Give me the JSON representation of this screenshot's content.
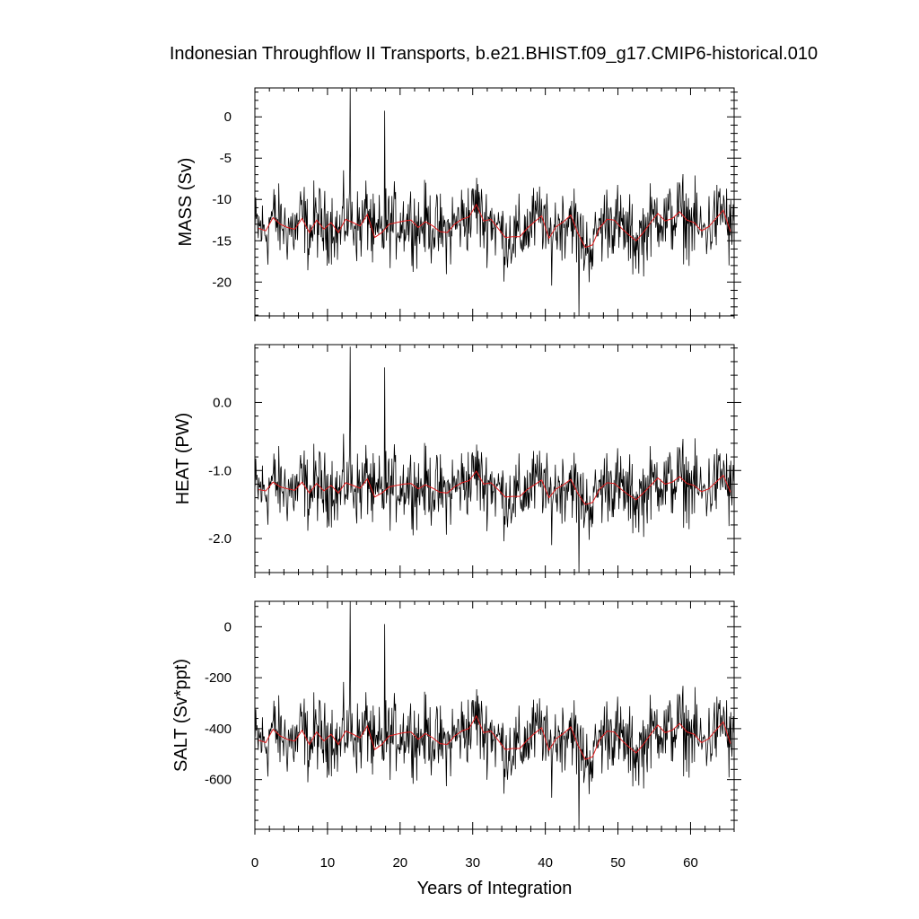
{
  "chart_data": {
    "type": "line",
    "title": "Indonesian Throughflow II Transports, b.e21.BHIST.f09_g17.CMIP6-historical.010",
    "xlabel": "Years of Integration",
    "xlim": [
      0,
      66
    ],
    "x_ticks": [
      0,
      10,
      20,
      30,
      40,
      50,
      60
    ],
    "x_tick_labels": [
      "0",
      "10",
      "20",
      "30",
      "40",
      "50",
      "60"
    ],
    "series_colors": {
      "monthly": "#000000",
      "annual_mean": "#e31a1c"
    },
    "panels": [
      {
        "ylabel": "MASS (Sv)",
        "ylim": [
          -24.1,
          3.5
        ],
        "y_ticks": [
          0,
          -5,
          -10,
          -15,
          -20
        ],
        "y_tick_labels": [
          "0",
          "-5",
          "-10",
          "-15",
          "-20"
        ],
        "annual_mean": [
          -13.5,
          -13.8,
          -12.2,
          -13.0,
          -13.4,
          -13.6,
          -12.3,
          -14.0,
          -12.5,
          -13.6,
          -12.8,
          -14.0,
          -12.4,
          -12.8,
          -13.2,
          -11.8,
          -14.6,
          -14.0,
          -13.0,
          -12.8,
          -12.6,
          -12.5,
          -13.4,
          -12.7,
          -13.2,
          -13.9,
          -14.0,
          -13.0,
          -12.4,
          -12.1,
          -10.6,
          -12.6,
          -12.4,
          -13.5,
          -14.6,
          -14.5,
          -14.5,
          -13.5,
          -12.7,
          -12.0,
          -14.7,
          -13.3,
          -12.7,
          -11.9,
          -14.1,
          -15.8,
          -15.5,
          -13.4,
          -12.4,
          -12.5,
          -13.5,
          -14.3,
          -15.0,
          -14.0,
          -12.8,
          -11.7,
          -12.6,
          -12.3,
          -11.5,
          -12.5,
          -12.8,
          -13.8,
          -13.3,
          -12.3,
          -11.3,
          -13.9
        ],
        "notable_extremes": {
          "max": 3.5,
          "max_year": 13.1,
          "min": -24.1,
          "min_year": 44.6
        }
      },
      {
        "ylabel": "HEAT (PW)",
        "ylim": [
          -2.5,
          0.85
        ],
        "y_ticks": [
          0.0,
          -1.0,
          -2.0
        ],
        "y_tick_labels": [
          "0.0",
          "-1.0",
          "-2.0"
        ],
        "annual_mean": [
          -1.28,
          -1.3,
          -1.17,
          -1.24,
          -1.27,
          -1.29,
          -1.17,
          -1.33,
          -1.19,
          -1.3,
          -1.22,
          -1.33,
          -1.18,
          -1.22,
          -1.26,
          -1.12,
          -1.39,
          -1.33,
          -1.24,
          -1.22,
          -1.2,
          -1.19,
          -1.27,
          -1.21,
          -1.26,
          -1.32,
          -1.33,
          -1.24,
          -1.18,
          -1.15,
          -1.01,
          -1.2,
          -1.18,
          -1.28,
          -1.39,
          -1.38,
          -1.38,
          -1.28,
          -1.21,
          -1.14,
          -1.4,
          -1.27,
          -1.21,
          -1.13,
          -1.34,
          -1.5,
          -1.47,
          -1.27,
          -1.18,
          -1.19,
          -1.28,
          -1.36,
          -1.43,
          -1.33,
          -1.22,
          -1.11,
          -1.2,
          -1.17,
          -1.09,
          -1.19,
          -1.22,
          -1.31,
          -1.27,
          -1.17,
          -1.07,
          -1.32
        ],
        "notable_extremes": {
          "max": 0.82,
          "max_year": 13.1,
          "min": -2.5,
          "min_year": 44.6
        }
      },
      {
        "ylabel": "SALT (Sv*ppt)",
        "ylim": [
          -795,
          100
        ],
        "y_ticks": [
          0,
          -200,
          -400,
          -600
        ],
        "y_tick_labels": [
          "0",
          "-200",
          "-400",
          "-600"
        ],
        "annual_mean": [
          -445,
          -455,
          -402,
          -429,
          -442,
          -449,
          -406,
          -462,
          -413,
          -449,
          -422,
          -462,
          -409,
          -422,
          -436,
          -389,
          -482,
          -462,
          -429,
          -422,
          -416,
          -413,
          -442,
          -419,
          -436,
          -459,
          -462,
          -429,
          -409,
          -399,
          -350,
          -416,
          -409,
          -445,
          -482,
          -478,
          -478,
          -445,
          -419,
          -396,
          -485,
          -439,
          -419,
          -393,
          -465,
          -521,
          -511,
          -442,
          -409,
          -413,
          -445,
          -472,
          -495,
          -462,
          -422,
          -386,
          -416,
          -406,
          -380,
          -413,
          -422,
          -455,
          -439,
          -406,
          -373,
          -459
        ],
        "notable_extremes": {
          "max": 100,
          "max_year": 13.1,
          "min": -795,
          "min_year": 44.6
        }
      }
    ]
  }
}
